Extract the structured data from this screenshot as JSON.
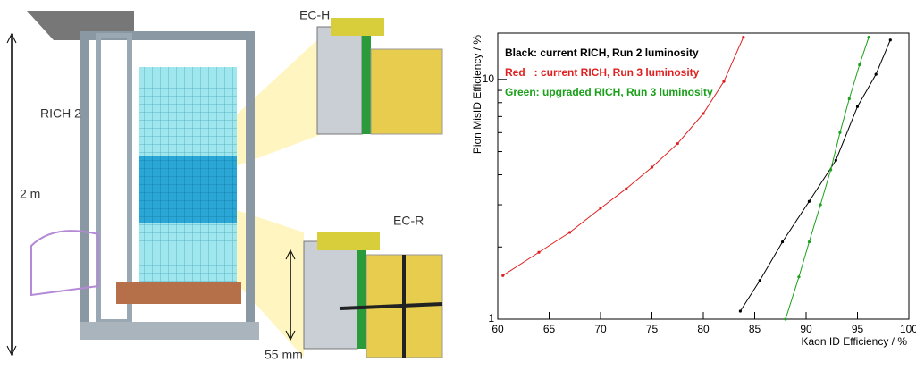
{
  "illustration": {
    "labels": [
      "EC-H",
      "RICH 2",
      "2 m",
      "EC-R",
      "55 mm"
    ]
  },
  "chart_data": {
    "type": "line",
    "xlabel": "Kaon ID Efficiency / %",
    "ylabel": "Pion MisID Efficiency / %",
    "xlim": [
      60,
      100
    ],
    "xticks": [
      60,
      65,
      70,
      75,
      80,
      85,
      90,
      95,
      100
    ],
    "ylim": [
      1,
      15.6
    ],
    "yticks": [
      1,
      10
    ],
    "y_minor_ticks": [
      2,
      3,
      4,
      5,
      6,
      7,
      8,
      9
    ],
    "ylog": true,
    "grid": false,
    "series": [
      {
        "name": "Black: current RICH, Run 2 luminosity",
        "color": "#000000",
        "x": [
          83.6,
          85.5,
          87.7,
          90.3,
          92.9,
          95.0,
          96.8,
          98.2
        ],
        "values": [
          1.08,
          1.45,
          2.1,
          3.1,
          4.6,
          7.7,
          10.5,
          14.6
        ]
      },
      {
        "name": "Red   : current RICH, Run 3 luminosity",
        "color": "#e02020",
        "x": [
          60.5,
          64,
          67,
          70,
          72.5,
          75,
          77.5,
          80,
          82,
          83.9
        ],
        "values": [
          1.52,
          1.9,
          2.3,
          2.9,
          3.5,
          4.3,
          5.4,
          7.2,
          9.8,
          15
        ]
      },
      {
        "name": "Green: upgraded RICH, Run 3 luminosity",
        "color": "#1aa01a",
        "x": [
          88,
          89.3,
          90.3,
          91.4,
          92.4,
          93.3,
          94.2,
          95.2,
          96.1
        ],
        "values": [
          1.0,
          1.5,
          2.1,
          3.0,
          4.2,
          6.0,
          8.3,
          11.5,
          15
        ]
      }
    ]
  }
}
